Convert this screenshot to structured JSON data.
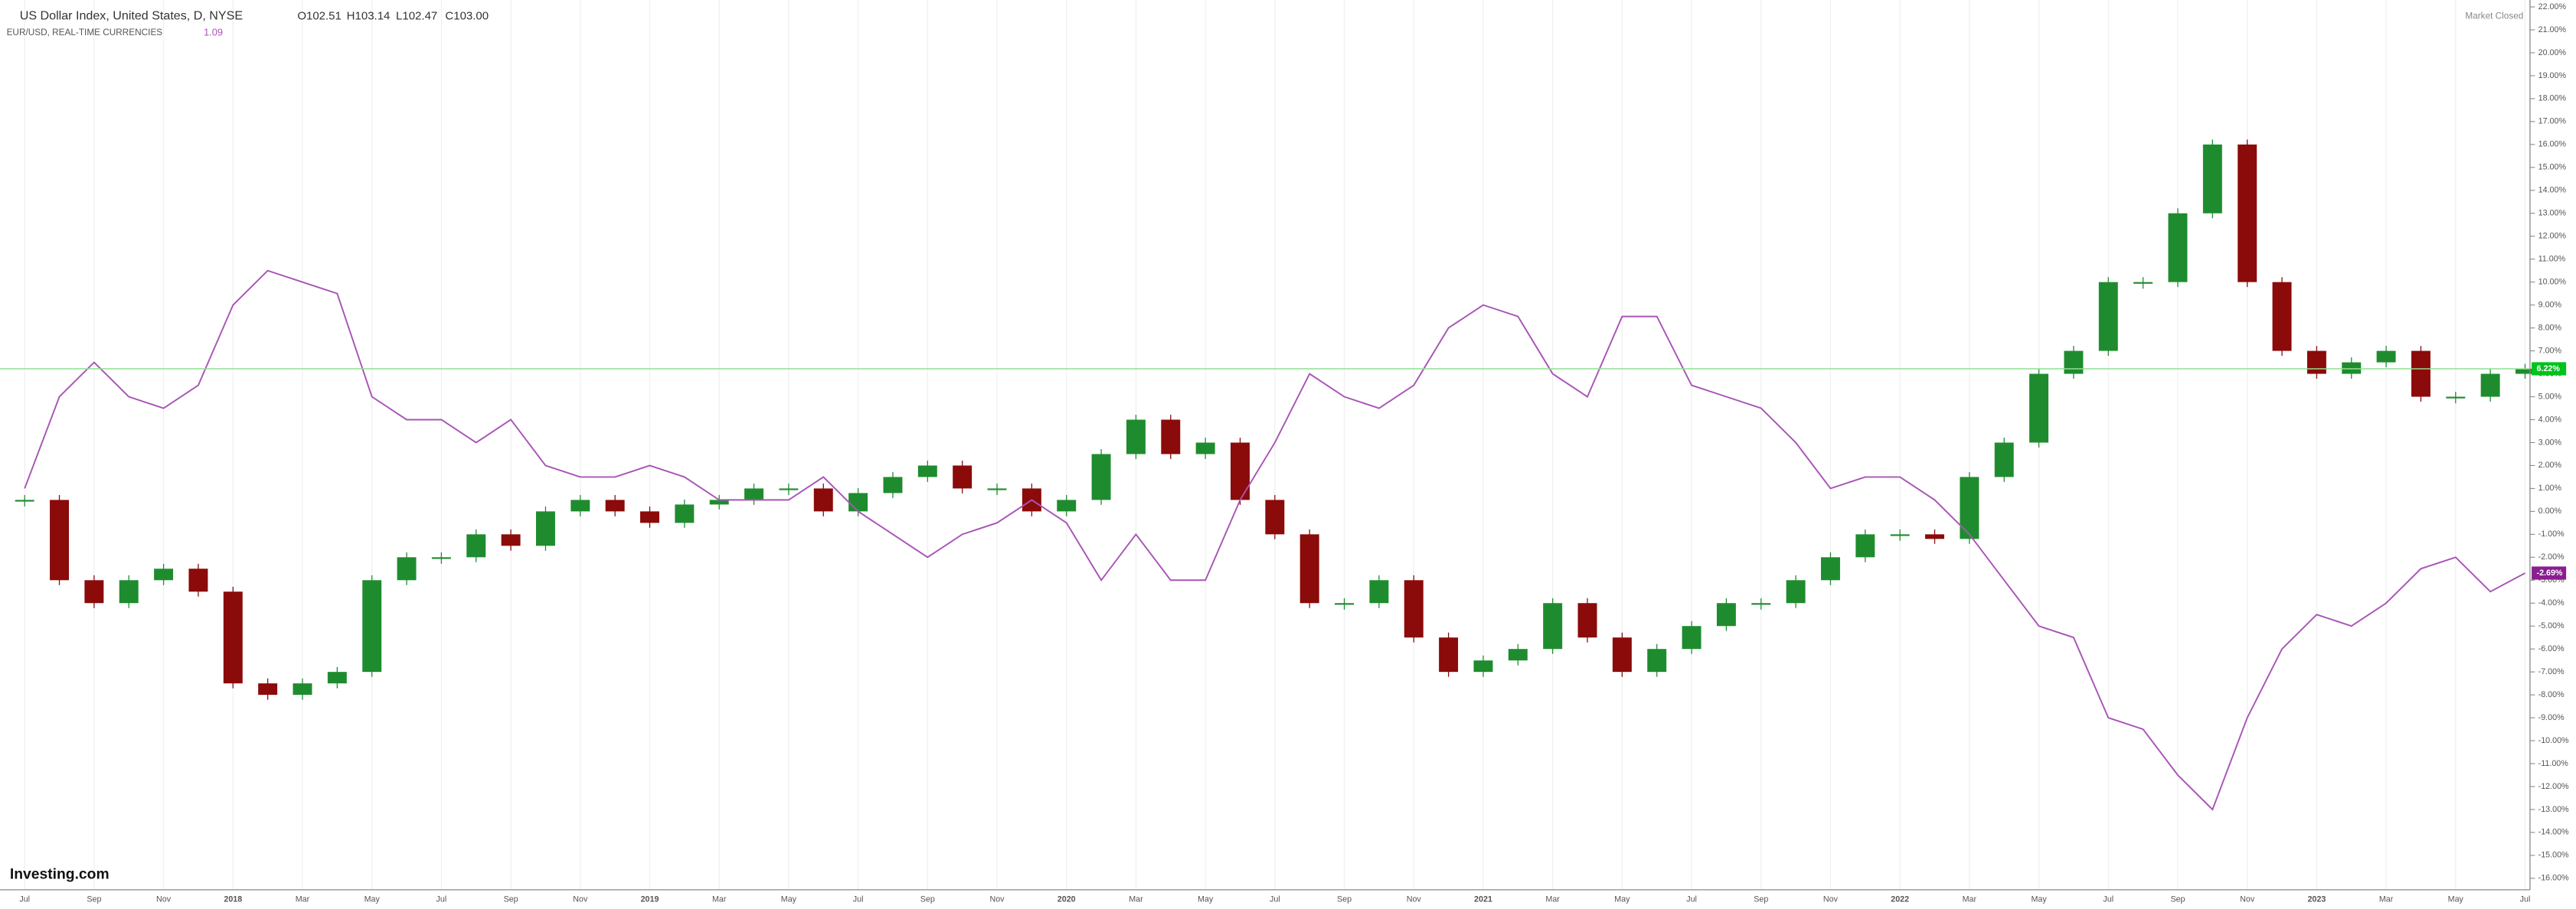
{
  "chart_data": {
    "type": "candlestick-line",
    "title": "US Dollar Index, United States, D, NYSE",
    "ohlc": [
      "O102.51",
      "H103.14",
      "L102.47",
      "C103.00"
    ],
    "subtitle": "EUR/USD, REAL-TIME CURRENCIES",
    "subtitle_value": "1.09",
    "status": "Market Closed",
    "brand": "Investing.com",
    "categories": [
      "Jul",
      null,
      "Sep",
      null,
      "Nov",
      null,
      "2018",
      null,
      "Mar",
      null,
      "May",
      null,
      "Jul",
      null,
      "Sep",
      null,
      "Nov",
      null,
      "2019",
      null,
      "Mar",
      null,
      "May",
      null,
      "Jul",
      null,
      "Sep",
      null,
      "Nov",
      null,
      "2020",
      null,
      "Mar",
      null,
      "May",
      null,
      "Jul",
      null,
      "Sep",
      null,
      "Nov",
      null,
      "2021",
      null,
      "Mar",
      null,
      "May",
      null,
      "Jul",
      null,
      "Sep",
      null,
      "Nov",
      null,
      "2022",
      null,
      "Mar",
      null,
      "May",
      null,
      "Jul",
      null,
      "Sep",
      null,
      "Nov",
      null,
      "2023",
      null,
      "Mar",
      null,
      "May",
      null,
      "Jul"
    ],
    "series": [
      {
        "name": "US Dollar Index",
        "up_color": "#1e8c2e",
        "down_color": "#8b0a0a",
        "last_color": "#00c21c",
        "last_label": "6.22%",
        "values": [
          0.5,
          -3,
          -4,
          -3,
          -2.5,
          -3.5,
          -7.5,
          -8,
          -7.5,
          -7,
          -3,
          -2,
          -2,
          -1,
          -1.5,
          0,
          0.5,
          0,
          -0.5,
          0.3,
          0.5,
          1,
          1,
          0,
          0.8,
          1.5,
          2,
          1,
          1,
          0,
          0.5,
          2.5,
          4,
          2.5,
          3,
          0.5,
          -1,
          -4,
          -4,
          -3,
          -5.5,
          -7,
          -6.5,
          -6,
          -4,
          -5.5,
          -7,
          -6,
          -5,
          -4,
          -4,
          -3,
          -2,
          -1,
          -1,
          -1.2,
          1.5,
          3,
          6,
          7,
          10,
          10,
          13,
          16,
          10,
          7,
          6,
          6.5,
          7,
          5,
          5,
          6,
          6.22
        ]
      },
      {
        "name": "EUR/USD",
        "color": "#a855b5",
        "last_color": "#8a1d8f",
        "last_label": "-2.69%",
        "values": [
          1,
          5,
          6.5,
          5,
          4.5,
          5.5,
          9,
          10.5,
          10,
          9.5,
          5,
          4,
          4,
          3,
          4,
          2,
          1.5,
          1.5,
          2,
          1.5,
          0.5,
          0.5,
          0.5,
          1.5,
          0,
          -1,
          -2,
          -1,
          -0.5,
          0.5,
          -0.5,
          -3,
          -1,
          -3,
          -3,
          0.5,
          3,
          6,
          5,
          4.5,
          5.5,
          8,
          9,
          8.5,
          6,
          5,
          8.5,
          8.5,
          5.5,
          5,
          4.5,
          3,
          1,
          1.5,
          1.5,
          0.5,
          -1,
          -3,
          -5,
          -5.5,
          -9,
          -9.5,
          -11.5,
          -13,
          -9,
          -6,
          -4.5,
          -5,
          -4,
          -2.5,
          -2,
          -3.5,
          -2.69
        ]
      }
    ],
    "ylim": [
      -16.5,
      22.3
    ],
    "yticks": [
      {
        "value": 22,
        "label": "22.00%"
      },
      {
        "value": 21,
        "label": "21.00%"
      },
      {
        "value": 20,
        "label": "20.00%"
      },
      {
        "value": 19,
        "label": "19.00%"
      },
      {
        "value": 18,
        "label": "18.00%"
      },
      {
        "value": 17,
        "label": "17.00%"
      },
      {
        "value": 16,
        "label": "16.00%"
      },
      {
        "value": 15,
        "label": "15.00%"
      },
      {
        "value": 14,
        "label": "14.00%"
      },
      {
        "value": 13,
        "label": "13.00%"
      },
      {
        "value": 12,
        "label": "12.00%"
      },
      {
        "value": 11,
        "label": "11.00%"
      },
      {
        "value": 10,
        "label": "10.00%"
      },
      {
        "value": 9,
        "label": "9.00%"
      },
      {
        "value": 8,
        "label": "8.00%"
      },
      {
        "value": 7,
        "label": "7.00%"
      },
      {
        "value": 6,
        "label": "6.00%"
      },
      {
        "value": 5,
        "label": "5.00%"
      },
      {
        "value": 4,
        "label": "4.00%"
      },
      {
        "value": 3,
        "label": "3.00%"
      },
      {
        "value": 2,
        "label": "2.00%"
      },
      {
        "value": 1,
        "label": "1.00%"
      },
      {
        "value": 0,
        "label": "0.00%"
      },
      {
        "value": -1,
        "label": "-1.00%"
      },
      {
        "value": -2,
        "label": "-2.00%"
      },
      {
        "value": -3,
        "label": "-3.00%"
      },
      {
        "value": -4,
        "label": "-4.00%"
      },
      {
        "value": -5,
        "label": "-5.00%"
      },
      {
        "value": -6,
        "label": "-6.00%"
      },
      {
        "value": -7,
        "label": "-7.00%"
      },
      {
        "value": -8,
        "label": "-8.00%"
      },
      {
        "value": -9,
        "label": "-9.00%"
      },
      {
        "value": -10,
        "label": "-10.00%"
      },
      {
        "value": -11,
        "label": "-11.00%"
      },
      {
        "value": -12,
        "label": "-12.00%"
      },
      {
        "value": -13,
        "label": "-13.00%"
      },
      {
        "value": -14,
        "label": "-14.00%"
      },
      {
        "value": -15,
        "label": "-15.00%"
      },
      {
        "value": -16,
        "label": "-16.00%"
      }
    ],
    "grid": true
  }
}
